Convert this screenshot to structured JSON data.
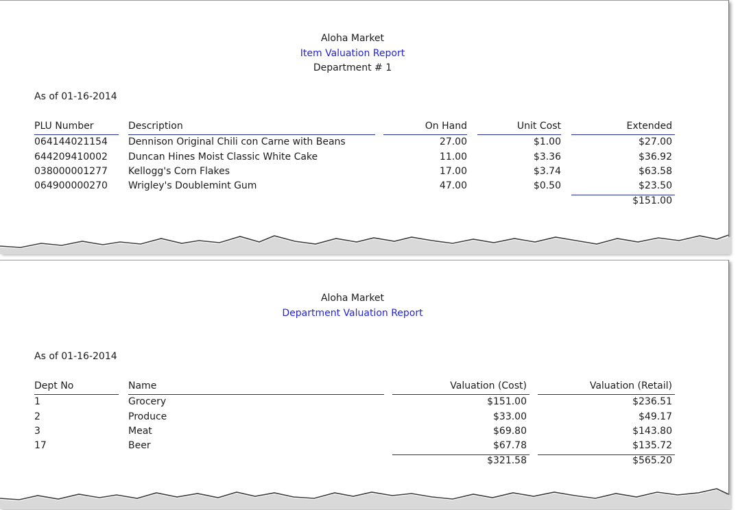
{
  "item_report": {
    "company": "Aloha Market",
    "title": "Item Valuation Report",
    "department": "Department # 1",
    "as_of": "As of 01-16-2014",
    "columns": [
      "PLU Number",
      "Description",
      "On Hand",
      "Unit Cost",
      "Extended"
    ],
    "rows": [
      [
        "064144021154",
        "Dennison Original Chili con Carne with Beans",
        "27.00",
        "$1.00",
        "$27.00"
      ],
      [
        "644209410002",
        "Duncan Hines Moist Classic White Cake",
        "11.00",
        "$3.36",
        "$36.92"
      ],
      [
        "038000001277",
        "Kellogg's Corn Flakes",
        "17.00",
        "$3.74",
        "$63.58"
      ],
      [
        "064900000270",
        "Wrigley's Doublemint Gum",
        "47.00",
        "$0.50",
        "$23.50"
      ]
    ],
    "total": "$151.00"
  },
  "dept_report": {
    "company": "Aloha Market",
    "title": "Department Valuation Report",
    "as_of": "As of 01-16-2014",
    "columns": [
      "Dept No",
      "Name",
      "Valuation (Cost)",
      "Valuation (Retail)"
    ],
    "rows": [
      [
        "1",
        "Grocery",
        "$151.00",
        "$236.51"
      ],
      [
        "2",
        "Produce",
        "$33.00",
        "$49.17"
      ],
      [
        "3",
        "Meat",
        "$69.80",
        "$143.80"
      ],
      [
        "17",
        "Beer",
        "$67.78",
        "$135.72"
      ]
    ],
    "total_cost": "$321.58",
    "total_retail": "$565.20"
  },
  "colors": {
    "title": "#2323d8",
    "rule": "#1f2a8f"
  }
}
